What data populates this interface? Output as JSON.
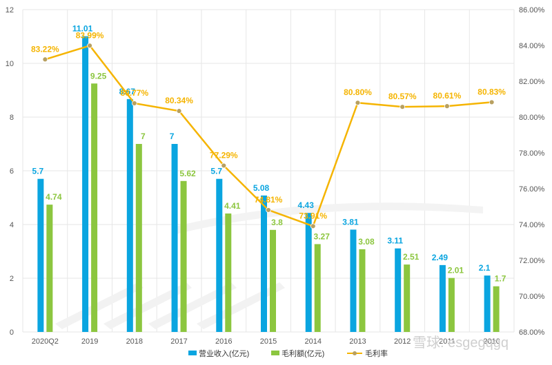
{
  "chart_data": {
    "type": "bar",
    "categories": [
      "2020Q2",
      "2019",
      "2018",
      "2017",
      "2016",
      "2015",
      "2014",
      "2013",
      "2012",
      "2011",
      "2010"
    ],
    "series": [
      {
        "name": "营业收入(亿元)",
        "kind": "bar",
        "axis": "left",
        "color": "#0aa5e0",
        "values": [
          5.7,
          11.01,
          8.67,
          7,
          5.7,
          5.08,
          4.43,
          3.81,
          3.11,
          2.49,
          2.1
        ],
        "labels": [
          "5.7",
          "11.01",
          "8.67",
          "7",
          "5.7",
          "5.08",
          "4.43",
          "3.81",
          "3.11",
          "2.49",
          "2.1"
        ]
      },
      {
        "name": "毛利额(亿元)",
        "kind": "bar",
        "axis": "left",
        "color": "#8cc63f",
        "values": [
          4.74,
          9.25,
          7,
          5.62,
          4.41,
          3.8,
          3.27,
          3.08,
          2.51,
          2.01,
          1.7
        ],
        "labels": [
          "4.74",
          "9.25",
          "7",
          "5.62",
          "4.41",
          "3.8",
          "3.27",
          "3.08",
          "2.51",
          "2.01",
          "1.7"
        ]
      },
      {
        "name": "毛利率",
        "kind": "line",
        "axis": "right",
        "color": "#f5b400",
        "values": [
          83.22,
          83.99,
          80.77,
          80.34,
          77.29,
          74.81,
          73.91,
          80.8,
          80.57,
          80.61,
          80.83
        ],
        "labels": [
          "83.22%",
          "83.99%",
          "80.77%",
          "80.34%",
          "77.29%",
          "74.81%",
          "73.91%",
          "80.80%",
          "80.57%",
          "80.61%",
          "80.83%"
        ]
      }
    ],
    "yleft": {
      "min": 0,
      "max": 12,
      "ticks": [
        "0",
        "2",
        "4",
        "6",
        "8",
        "10",
        "12"
      ]
    },
    "yright": {
      "min": 68,
      "max": 86,
      "ticks": [
        "68.00%",
        "70.00%",
        "72.00%",
        "74.00%",
        "76.00%",
        "78.00%",
        "80.00%",
        "82.00%",
        "84.00%",
        "86.00%"
      ]
    },
    "grid": true,
    "legend_position": "bottom",
    "legend": [
      "营业收入(亿元)",
      "毛利额(亿元)",
      "毛利率"
    ]
  },
  "watermark": "雪球: esgegqgq",
  "colors": {
    "revenue": "#0aa5e0",
    "gross": "#8cc63f",
    "rate": "#f5b400",
    "marker": "#b8a060",
    "grid": "#e6e6e6"
  }
}
